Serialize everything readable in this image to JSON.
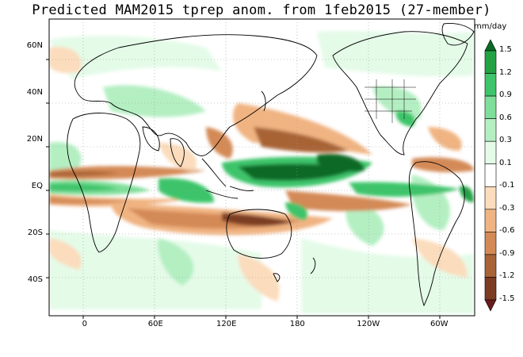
{
  "title": "Predicted MAM2015 tprep anom. from 1feb2015 (27-member)",
  "units": "mm/day",
  "lat_labels": [
    {
      "text": "60N",
      "lat": 60
    },
    {
      "text": "40N",
      "lat": 40
    },
    {
      "text": "20N",
      "lat": 20
    },
    {
      "text": "EQ",
      "lat": 0
    },
    {
      "text": "20S",
      "lat": -20
    },
    {
      "text": "40S",
      "lat": -40
    }
  ],
  "lon_labels": [
    {
      "text": "0",
      "lon": 0
    },
    {
      "text": "60E",
      "lon": 60
    },
    {
      "text": "120E",
      "lon": 120
    },
    {
      "text": "180",
      "lon": 180
    },
    {
      "text": "120W",
      "lon": 240
    },
    {
      "text": "60W",
      "lon": 300
    }
  ],
  "map": {
    "lon_range": [
      -30,
      330
    ],
    "lat_range": [
      -55,
      72
    ],
    "grid": true
  },
  "colorbar": {
    "labels": [
      "1.5",
      "1.2",
      "0.9",
      "0.6",
      "0.3",
      "0.1",
      "-0.1",
      "-0.3",
      "-0.6",
      "-0.9",
      "-1.2",
      "-1.5"
    ],
    "colors": [
      "#0a6b27",
      "#23a244",
      "#3ec46a",
      "#7fdf9a",
      "#b4efc2",
      "#e4fbe8",
      "#ffffff",
      "#fbdcbc",
      "#f0b482",
      "#d48a56",
      "#a86436",
      "#7c3c22",
      "#6a1c1c"
    ]
  }
}
